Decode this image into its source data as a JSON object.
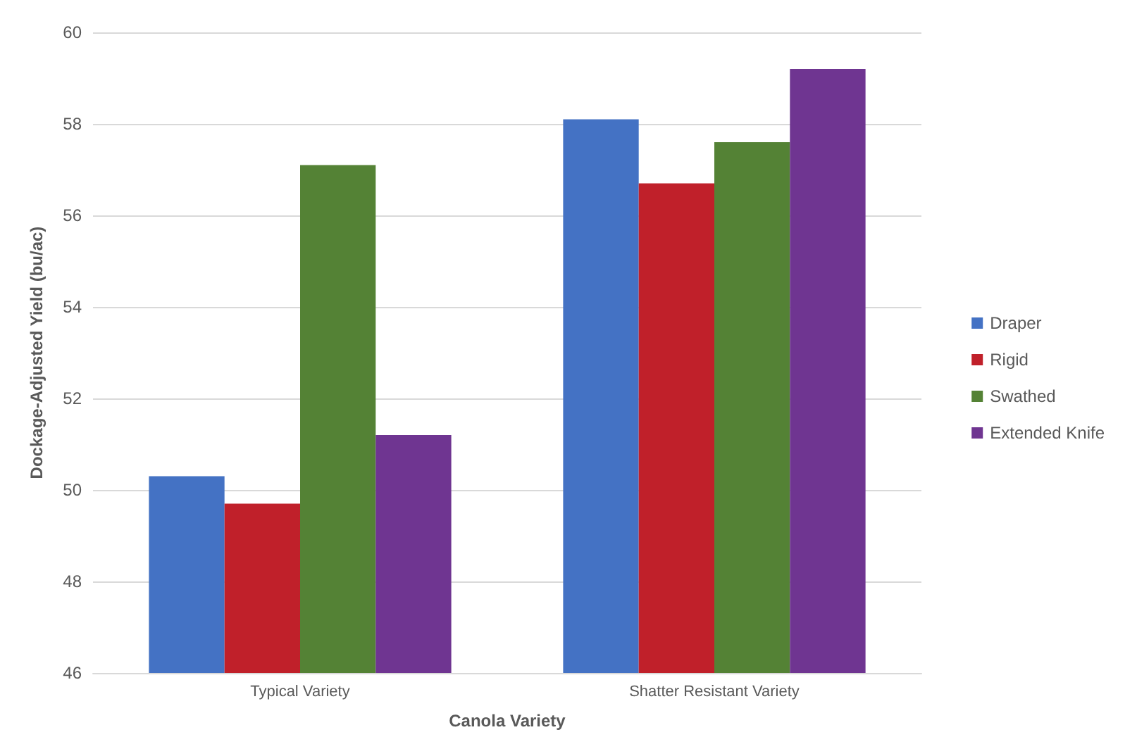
{
  "chart_data": {
    "type": "bar",
    "xlabel": "Canola Variety",
    "ylabel": "Dockage-Adjusted Yield (bu/ac)",
    "categories": [
      "Typical Variety",
      "Shatter Resistant Variety"
    ],
    "series": [
      {
        "name": "Draper",
        "color": "#4472c4",
        "values": [
          50.3,
          58.1
        ]
      },
      {
        "name": "Rigid",
        "color": "#c0202a",
        "values": [
          49.7,
          56.7
        ]
      },
      {
        "name": "Swathed",
        "color": "#548235",
        "values": [
          57.1,
          57.6
        ]
      },
      {
        "name": "Extended Knife",
        "color": "#6f3591",
        "values": [
          51.2,
          59.2
        ]
      }
    ],
    "ylim": [
      46,
      60
    ],
    "yticks": [
      46,
      48,
      50,
      52,
      54,
      56,
      58,
      60
    ],
    "grid": "y",
    "legend": "right"
  }
}
